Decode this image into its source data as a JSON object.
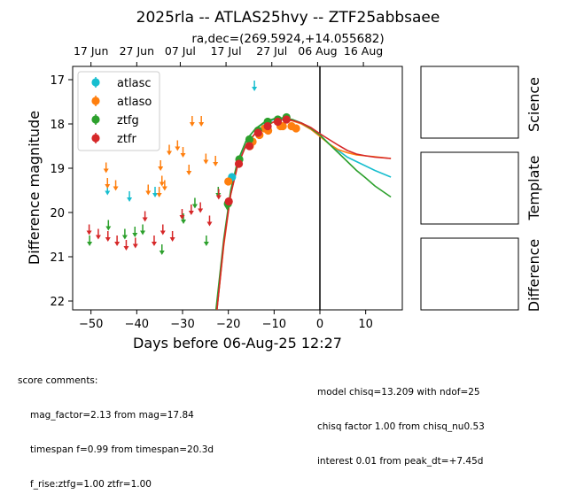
{
  "header": {
    "title": "2025rla -- ATLAS25hvy -- ZTF25abbsaee",
    "subtitle": "ra,dec=(269.5924,+14.055682)"
  },
  "side_labels": [
    "Science",
    "Template",
    "Difference"
  ],
  "score_comments": {
    "heading": "score comments:",
    "left": [
      "mag_factor=2.13 from mag=17.84",
      "timespan f=0.99 from timespan=20.3d",
      "f_rise:ztfg=1.00 ztfr=1.00"
    ],
    "right": [
      "model chisq=13.209 with ndof=25",
      "chisq factor 1.00 from chisq_nu0.53",
      "interest 0.01 from peak_dt=+7.45d"
    ]
  },
  "colors": {
    "atlasc": "#17becf",
    "atlaso": "#ff7f0e",
    "ztfg": "#2ca02c",
    "ztfr": "#d62728",
    "marker": "#000000"
  },
  "chart_data": {
    "type": "scatter",
    "xlabel": "Days before 06-Aug-25 12:27",
    "ylabel": "Difference magnitude",
    "xlim": [
      -54,
      18
    ],
    "ylim": [
      22.2,
      16.7
    ],
    "y_inverted": true,
    "xticks": [
      -50,
      -40,
      -30,
      -20,
      -10,
      0,
      10
    ],
    "yticks": [
      17,
      18,
      19,
      20,
      21,
      22
    ],
    "top_axis_ticks": [
      {
        "x": -50.0,
        "label": "17 Jun"
      },
      {
        "x": -40.0,
        "label": "27 Jun"
      },
      {
        "x": -30.5,
        "label": "07 Jul"
      },
      {
        "x": -20.5,
        "label": "17 Jul"
      },
      {
        "x": -10.5,
        "label": "27 Jul"
      },
      {
        "x": -0.5,
        "label": "06 Aug"
      },
      {
        "x": 9.5,
        "label": "16 Aug"
      }
    ],
    "reference_line_x": 0,
    "legend": {
      "position": "top-left",
      "entries": [
        "atlasc",
        "atlaso",
        "ztfg",
        "ztfr"
      ]
    },
    "series": [
      {
        "name": "atlasc",
        "detections": [
          {
            "x": -19.2,
            "y": 19.2
          }
        ],
        "upper_limits": [
          {
            "x": -46.4,
            "y": 19.45
          },
          {
            "x": -41.6,
            "y": 19.6
          },
          {
            "x": -36.0,
            "y": 19.5
          },
          {
            "x": -14.3,
            "y": 17.1
          }
        ]
      },
      {
        "name": "atlaso",
        "detections": [
          {
            "x": -20.0,
            "y": 19.3
          },
          {
            "x": -15.3,
            "y": 18.5
          },
          {
            "x": -14.7,
            "y": 18.4
          },
          {
            "x": -13.2,
            "y": 18.25
          },
          {
            "x": -12.1,
            "y": 18.1
          },
          {
            "x": -11.3,
            "y": 18.15
          },
          {
            "x": -8.6,
            "y": 18.05
          },
          {
            "x": -8.1,
            "y": 18.05
          },
          {
            "x": -6.2,
            "y": 18.05
          },
          {
            "x": -5.2,
            "y": 18.1
          }
        ],
        "upper_limits": [
          {
            "x": -46.7,
            "y": 18.95
          },
          {
            "x": -46.4,
            "y": 19.3
          },
          {
            "x": -44.6,
            "y": 19.35
          },
          {
            "x": -37.5,
            "y": 19.45
          },
          {
            "x": -35.1,
            "y": 19.5
          },
          {
            "x": -34.8,
            "y": 18.9
          },
          {
            "x": -34.5,
            "y": 19.25
          },
          {
            "x": -33.9,
            "y": 19.35
          },
          {
            "x": -32.9,
            "y": 18.55
          },
          {
            "x": -31.1,
            "y": 18.45
          },
          {
            "x": -29.9,
            "y": 18.6
          },
          {
            "x": -27.9,
            "y": 17.9
          },
          {
            "x": -25.9,
            "y": 17.9
          },
          {
            "x": -24.9,
            "y": 18.75
          },
          {
            "x": -22.8,
            "y": 18.8
          },
          {
            "x": -28.6,
            "y": 19.0
          }
        ]
      },
      {
        "name": "ztfg",
        "detections": [
          {
            "x": -20.1,
            "y": 19.8
          },
          {
            "x": -17.6,
            "y": 18.8
          },
          {
            "x": -15.4,
            "y": 18.35
          },
          {
            "x": -13.5,
            "y": 18.15
          },
          {
            "x": -11.4,
            "y": 17.95
          },
          {
            "x": -9.2,
            "y": 17.9
          },
          {
            "x": -7.3,
            "y": 17.85
          }
        ],
        "upper_limits": [
          {
            "x": -50.3,
            "y": 20.6
          },
          {
            "x": -46.2,
            "y": 20.25
          },
          {
            "x": -42.6,
            "y": 20.45
          },
          {
            "x": -40.4,
            "y": 20.4
          },
          {
            "x": -38.7,
            "y": 20.35
          },
          {
            "x": -34.5,
            "y": 20.8
          },
          {
            "x": -29.8,
            "y": 20.1
          },
          {
            "x": -27.3,
            "y": 19.75
          },
          {
            "x": -24.8,
            "y": 20.6
          },
          {
            "x": -22.2,
            "y": 19.5
          },
          {
            "x": -20.2,
            "y": 19.8
          }
        ]
      },
      {
        "name": "ztfr",
        "detections": [
          {
            "x": -19.9,
            "y": 19.75
          },
          {
            "x": -17.7,
            "y": 18.9
          },
          {
            "x": -15.4,
            "y": 18.5
          },
          {
            "x": -13.5,
            "y": 18.2
          },
          {
            "x": -11.4,
            "y": 18.05
          },
          {
            "x": -9.2,
            "y": 17.95
          },
          {
            "x": -7.3,
            "y": 17.9
          }
        ],
        "upper_limits": [
          {
            "x": -50.4,
            "y": 20.35
          },
          {
            "x": -48.4,
            "y": 20.45
          },
          {
            "x": -46.3,
            "y": 20.5
          },
          {
            "x": -44.3,
            "y": 20.6
          },
          {
            "x": -42.3,
            "y": 20.7
          },
          {
            "x": -40.3,
            "y": 20.65
          },
          {
            "x": -38.2,
            "y": 20.05
          },
          {
            "x": -36.2,
            "y": 20.6
          },
          {
            "x": -34.3,
            "y": 20.35
          },
          {
            "x": -32.2,
            "y": 20.5
          },
          {
            "x": -30.1,
            "y": 20.0
          },
          {
            "x": -28.1,
            "y": 19.9
          },
          {
            "x": -26.1,
            "y": 19.85
          },
          {
            "x": -24.1,
            "y": 20.15
          },
          {
            "x": -22.1,
            "y": 19.55
          },
          {
            "x": -20.0,
            "y": 19.75
          }
        ]
      }
    ],
    "models": [
      {
        "name": "atlasc",
        "points": [
          [
            -22.5,
            22.2
          ],
          [
            -21,
            20.7
          ],
          [
            -19.5,
            19.55
          ],
          [
            -18,
            18.9
          ],
          [
            -16,
            18.35
          ],
          [
            -14,
            18.1
          ],
          [
            -12,
            17.97
          ],
          [
            -10,
            17.9
          ],
          [
            -8,
            17.87
          ],
          [
            -6,
            17.9
          ],
          [
            -4,
            17.98
          ],
          [
            -2,
            18.1
          ],
          [
            0,
            18.25
          ],
          [
            2,
            18.45
          ],
          [
            4,
            18.6
          ],
          [
            6,
            18.75
          ],
          [
            8,
            18.85
          ],
          [
            10,
            18.95
          ],
          [
            12,
            19.05
          ],
          [
            15.5,
            19.2
          ]
        ]
      },
      {
        "name": "atlaso",
        "points": [
          [
            -22.5,
            22.2
          ],
          [
            -21,
            20.75
          ],
          [
            -19.5,
            19.6
          ],
          [
            -18,
            18.95
          ],
          [
            -16,
            18.45
          ],
          [
            -14,
            18.2
          ],
          [
            -12,
            18.05
          ],
          [
            -10,
            17.95
          ],
          [
            -8,
            17.9
          ],
          [
            -6,
            17.93
          ],
          [
            -4,
            18.0
          ],
          [
            -2,
            18.12
          ],
          [
            0,
            18.28
          ],
          [
            2,
            18.45
          ],
          [
            4,
            18.58
          ],
          [
            6,
            18.65
          ],
          [
            8,
            18.7
          ],
          [
            10,
            18.72
          ],
          [
            12,
            18.74
          ],
          [
            15.5,
            18.78
          ]
        ]
      },
      {
        "name": "ztfg",
        "points": [
          [
            -22.7,
            22.2
          ],
          [
            -21,
            20.6
          ],
          [
            -19.5,
            19.5
          ],
          [
            -18,
            18.85
          ],
          [
            -16,
            18.35
          ],
          [
            -14,
            18.1
          ],
          [
            -12,
            17.95
          ],
          [
            -10,
            17.88
          ],
          [
            -8,
            17.86
          ],
          [
            -6,
            17.9
          ],
          [
            -4,
            17.98
          ],
          [
            -2,
            18.1
          ],
          [
            0,
            18.25
          ],
          [
            2,
            18.45
          ],
          [
            4,
            18.65
          ],
          [
            6,
            18.85
          ],
          [
            8,
            19.05
          ],
          [
            10,
            19.22
          ],
          [
            12,
            19.4
          ],
          [
            15.5,
            19.65
          ]
        ]
      },
      {
        "name": "ztfr",
        "points": [
          [
            -22.5,
            22.2
          ],
          [
            -21,
            20.7
          ],
          [
            -19.5,
            19.6
          ],
          [
            -18,
            18.95
          ],
          [
            -16,
            18.45
          ],
          [
            -14,
            18.2
          ],
          [
            -12,
            18.05
          ],
          [
            -10,
            17.95
          ],
          [
            -8,
            17.9
          ],
          [
            -6,
            17.92
          ],
          [
            -4,
            17.98
          ],
          [
            -2,
            18.08
          ],
          [
            0,
            18.22
          ],
          [
            2,
            18.35
          ],
          [
            4,
            18.48
          ],
          [
            6,
            18.6
          ],
          [
            8,
            18.68
          ],
          [
            10,
            18.72
          ],
          [
            12,
            18.75
          ],
          [
            15.5,
            18.78
          ]
        ]
      }
    ]
  }
}
